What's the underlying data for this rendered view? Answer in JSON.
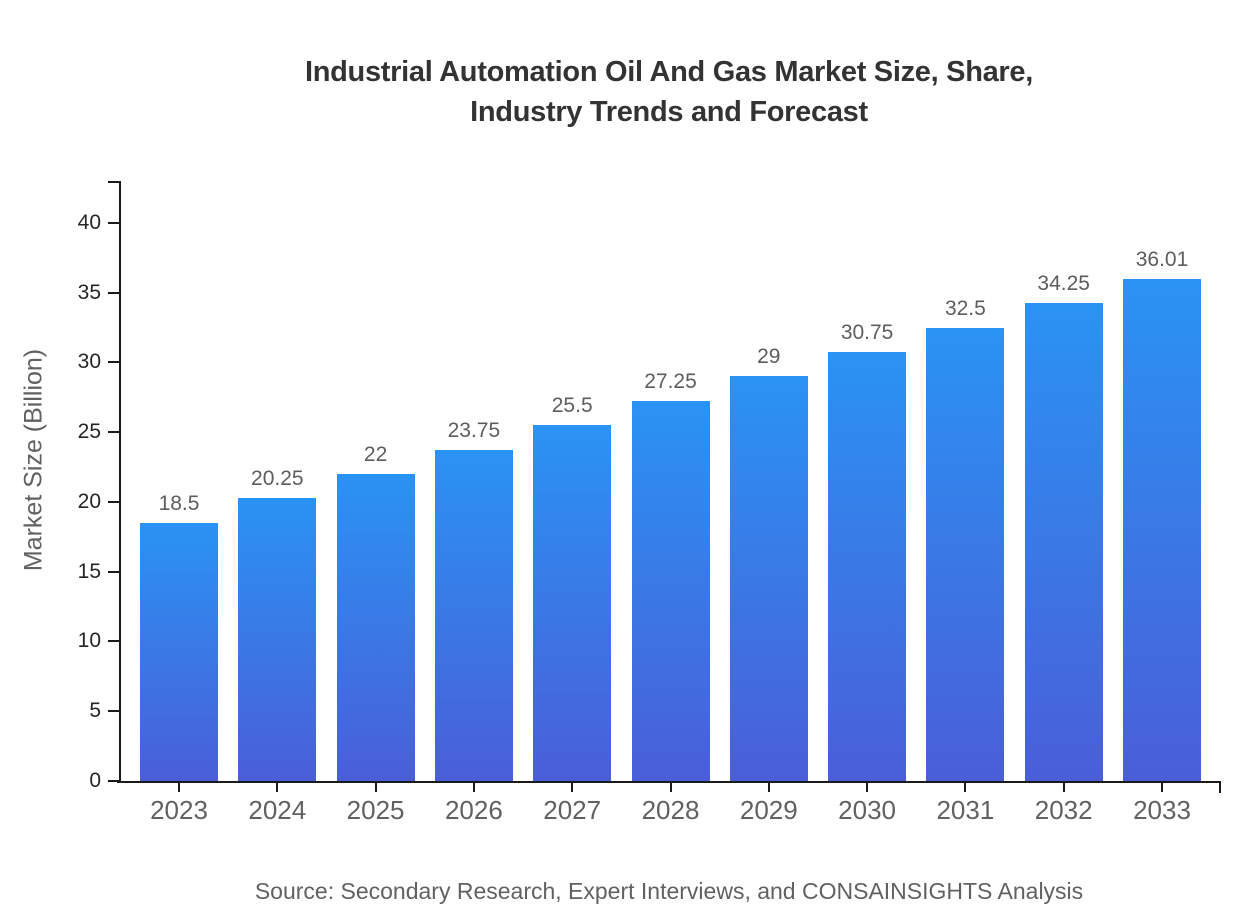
{
  "title": {
    "line1": "Industrial Automation Oil And Gas Market Size, Share,",
    "line2": "Industry Trends and Forecast"
  },
  "source": "Source: Secondary Research, Expert Interviews, and CONSAINSIGHTS Analysis",
  "chart_data": {
    "type": "bar",
    "title": "Industrial Automation Oil And Gas Market Size, Share, Industry Trends and Forecast",
    "xlabel": "",
    "ylabel": "Market Size (Billion)",
    "categories": [
      "2023",
      "2024",
      "2025",
      "2026",
      "2027",
      "2028",
      "2029",
      "2030",
      "2031",
      "2032",
      "2033"
    ],
    "values": [
      18.5,
      20.25,
      22,
      23.75,
      25.5,
      27.25,
      29,
      30.75,
      32.5,
      34.25,
      36.01
    ],
    "value_labels": [
      "18.5",
      "20.25",
      "22",
      "23.75",
      "25.5",
      "27.25",
      "29",
      "30.75",
      "32.5",
      "34.25",
      "36.01"
    ],
    "yticks": [
      "0",
      "5",
      "10",
      "15",
      "20",
      "25",
      "30",
      "35",
      "40"
    ],
    "ytick_values": [
      0,
      5,
      10,
      15,
      20,
      25,
      30,
      35,
      40
    ],
    "ylim": [
      0,
      43
    ],
    "grid": false,
    "legend_position": "none",
    "bar_color_top": "#2a93f4",
    "bar_color_bottom": "#4a5ed8",
    "axis_color": "#1a1a1a",
    "tick_label_color": "#262626",
    "category_label_color": "#616161",
    "value_label_color": "#5d5d5d",
    "title_color": "#333333",
    "background_color": "#ffffff"
  }
}
